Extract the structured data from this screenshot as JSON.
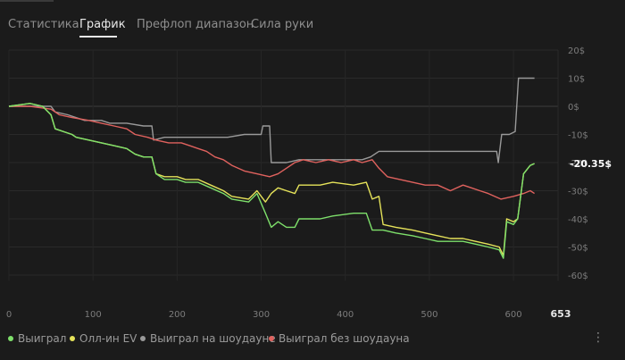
{
  "tabs": [
    {
      "label": "Статистика"
    },
    {
      "label": "График"
    },
    {
      "label": "Префлоп диапазон"
    },
    {
      "label": "Сила руки"
    }
  ],
  "active_tab": "График",
  "legend": {
    "items": [
      {
        "label": "Выиграл",
        "color": "#7ee06b"
      },
      {
        "label": "Олл-ин EV",
        "color": "#e6e35a"
      },
      {
        "label": "Выиграл на шоудауне",
        "color": "#9a9a9a"
      },
      {
        "label": "Выиграл без шоудауна",
        "color": "#e0625e"
      }
    ]
  },
  "more_icon": "vertical-ellipsis-icon",
  "chart_data": {
    "type": "line",
    "title": "",
    "xlabel": "",
    "ylabel": "",
    "xlim": [
      0,
      653
    ],
    "ylim": [
      -62,
      20
    ],
    "x_ticks": [
      0,
      100,
      200,
      300,
      400,
      500,
      600
    ],
    "x_tick_labels": [
      "0",
      "100",
      "200",
      "300",
      "400",
      "500",
      "600"
    ],
    "x_end_label": "653",
    "y_ticks": [
      20,
      10,
      0,
      -10,
      -20,
      -30,
      -40,
      -50,
      -60
    ],
    "y_tick_labels": [
      "20$",
      "10$",
      "0$",
      "-10$",
      "-20$",
      "-30$",
      "-40$",
      "-50$",
      "-60$"
    ],
    "current_value_label": "-20.35$",
    "current_value": -20.35,
    "grid": true,
    "series": [
      {
        "name": "Выиграл",
        "color": "#7ee06b",
        "points": [
          [
            0,
            0
          ],
          [
            25,
            1
          ],
          [
            40,
            0
          ],
          [
            50,
            -3
          ],
          [
            55,
            -8
          ],
          [
            75,
            -10
          ],
          [
            80,
            -11
          ],
          [
            95,
            -12
          ],
          [
            110,
            -13
          ],
          [
            125,
            -14
          ],
          [
            140,
            -15
          ],
          [
            150,
            -17
          ],
          [
            160,
            -18
          ],
          [
            170,
            -18
          ],
          [
            175,
            -24
          ],
          [
            185,
            -26
          ],
          [
            200,
            -26
          ],
          [
            210,
            -27
          ],
          [
            225,
            -27
          ],
          [
            240,
            -29
          ],
          [
            255,
            -31
          ],
          [
            265,
            -33
          ],
          [
            285,
            -34
          ],
          [
            295,
            -31
          ],
          [
            305,
            -38
          ],
          [
            312,
            -43
          ],
          [
            320,
            -41
          ],
          [
            330,
            -43
          ],
          [
            340,
            -43
          ],
          [
            345,
            -40
          ],
          [
            370,
            -40
          ],
          [
            385,
            -39
          ],
          [
            410,
            -38
          ],
          [
            425,
            -38
          ],
          [
            432,
            -44
          ],
          [
            445,
            -44
          ],
          [
            460,
            -45
          ],
          [
            480,
            -46
          ],
          [
            495,
            -47
          ],
          [
            510,
            -48
          ],
          [
            525,
            -48
          ],
          [
            540,
            -48
          ],
          [
            555,
            -49
          ],
          [
            570,
            -50
          ],
          [
            583,
            -51
          ],
          [
            588,
            -54
          ],
          [
            592,
            -41
          ],
          [
            600,
            -42
          ],
          [
            605,
            -40
          ],
          [
            612,
            -24
          ],
          [
            620,
            -21
          ],
          [
            625,
            -20.35
          ]
        ]
      },
      {
        "name": "Олл-ин EV",
        "color": "#e6e35a",
        "points": [
          [
            0,
            0
          ],
          [
            25,
            1
          ],
          [
            40,
            0
          ],
          [
            50,
            -3
          ],
          [
            55,
            -8
          ],
          [
            75,
            -10
          ],
          [
            80,
            -11
          ],
          [
            95,
            -12
          ],
          [
            110,
            -13
          ],
          [
            125,
            -14
          ],
          [
            140,
            -15
          ],
          [
            150,
            -17
          ],
          [
            160,
            -18
          ],
          [
            170,
            -18
          ],
          [
            175,
            -24
          ],
          [
            185,
            -25
          ],
          [
            200,
            -25
          ],
          [
            210,
            -26
          ],
          [
            225,
            -26
          ],
          [
            240,
            -28
          ],
          [
            255,
            -30
          ],
          [
            265,
            -32
          ],
          [
            285,
            -33
          ],
          [
            295,
            -30
          ],
          [
            305,
            -34
          ],
          [
            312,
            -31
          ],
          [
            320,
            -29
          ],
          [
            330,
            -30
          ],
          [
            340,
            -31
          ],
          [
            345,
            -28
          ],
          [
            370,
            -28
          ],
          [
            385,
            -27
          ],
          [
            410,
            -28
          ],
          [
            425,
            -27
          ],
          [
            432,
            -33
          ],
          [
            440,
            -32
          ],
          [
            445,
            -42
          ],
          [
            460,
            -43
          ],
          [
            480,
            -44
          ],
          [
            495,
            -45
          ],
          [
            510,
            -46
          ],
          [
            525,
            -47
          ],
          [
            540,
            -47
          ],
          [
            555,
            -48
          ],
          [
            570,
            -49
          ],
          [
            583,
            -50
          ],
          [
            588,
            -53
          ],
          [
            592,
            -40
          ],
          [
            600,
            -41
          ],
          [
            605,
            -40
          ],
          [
            612,
            -24
          ],
          [
            620,
            -21
          ],
          [
            625,
            -20.35
          ]
        ]
      },
      {
        "name": "Выиграл на шоудауне",
        "color": "#9a9a9a",
        "points": [
          [
            0,
            0
          ],
          [
            25,
            0
          ],
          [
            50,
            0
          ],
          [
            55,
            -2
          ],
          [
            70,
            -3
          ],
          [
            90,
            -5
          ],
          [
            110,
            -5
          ],
          [
            120,
            -6
          ],
          [
            140,
            -6
          ],
          [
            160,
            -7
          ],
          [
            170,
            -7
          ],
          [
            172,
            -12
          ],
          [
            185,
            -11
          ],
          [
            200,
            -11
          ],
          [
            210,
            -11
          ],
          [
            225,
            -11
          ],
          [
            260,
            -11
          ],
          [
            280,
            -10
          ],
          [
            300,
            -10
          ],
          [
            302,
            -7
          ],
          [
            310,
            -7
          ],
          [
            312,
            -20
          ],
          [
            330,
            -20
          ],
          [
            345,
            -19
          ],
          [
            380,
            -19
          ],
          [
            400,
            -19
          ],
          [
            420,
            -19
          ],
          [
            430,
            -18
          ],
          [
            440,
            -16
          ],
          [
            500,
            -16
          ],
          [
            550,
            -16
          ],
          [
            580,
            -16
          ],
          [
            582,
            -20
          ],
          [
            586,
            -10
          ],
          [
            595,
            -10
          ],
          [
            602,
            -9
          ],
          [
            606,
            10
          ],
          [
            625,
            10
          ]
        ]
      },
      {
        "name": "Выиграл без шоудауна",
        "color": "#e0625e",
        "points": [
          [
            0,
            0
          ],
          [
            25,
            0
          ],
          [
            50,
            -1
          ],
          [
            60,
            -3
          ],
          [
            75,
            -4
          ],
          [
            95,
            -5
          ],
          [
            110,
            -6
          ],
          [
            125,
            -7
          ],
          [
            140,
            -8
          ],
          [
            150,
            -10
          ],
          [
            165,
            -11
          ],
          [
            175,
            -12
          ],
          [
            190,
            -13
          ],
          [
            205,
            -13
          ],
          [
            215,
            -14
          ],
          [
            225,
            -15
          ],
          [
            235,
            -16
          ],
          [
            245,
            -18
          ],
          [
            255,
            -19
          ],
          [
            265,
            -21
          ],
          [
            280,
            -23
          ],
          [
            295,
            -24
          ],
          [
            310,
            -25
          ],
          [
            320,
            -24
          ],
          [
            330,
            -22
          ],
          [
            340,
            -20
          ],
          [
            350,
            -19
          ],
          [
            365,
            -20
          ],
          [
            380,
            -19
          ],
          [
            395,
            -20
          ],
          [
            410,
            -19
          ],
          [
            420,
            -20
          ],
          [
            432,
            -19
          ],
          [
            440,
            -22
          ],
          [
            450,
            -25
          ],
          [
            465,
            -26
          ],
          [
            480,
            -27
          ],
          [
            495,
            -28
          ],
          [
            510,
            -28
          ],
          [
            525,
            -30
          ],
          [
            540,
            -28
          ],
          [
            550,
            -29
          ],
          [
            560,
            -30
          ],
          [
            570,
            -31
          ],
          [
            585,
            -33
          ],
          [
            600,
            -32
          ],
          [
            612,
            -31
          ],
          [
            620,
            -30
          ],
          [
            625,
            -31
          ]
        ]
      }
    ]
  }
}
